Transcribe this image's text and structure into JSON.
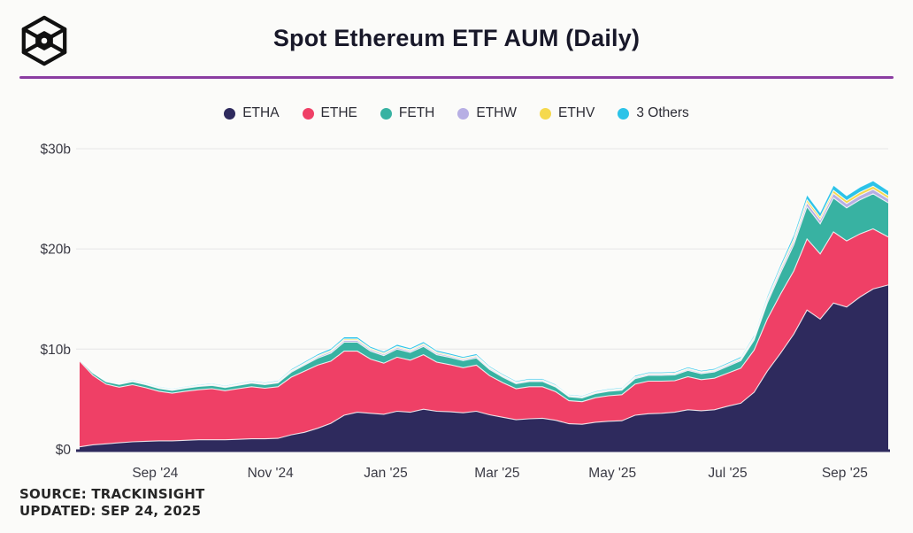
{
  "header": {
    "title": "Spot Ethereum ETF AUM (Daily)",
    "logo_icon": "trackinsight-cube-logo",
    "divider_color": "#8b3da2"
  },
  "footer": {
    "source": "SOURCE: TRACKINSIGHT",
    "updated": "UPDATED: SEP 24, 2025"
  },
  "chart_data": {
    "type": "area",
    "stacked": true,
    "title": "Spot Ethereum ETF AUM (Daily)",
    "unit": "USD billions",
    "ylim": [
      0,
      30
    ],
    "grid": true,
    "legend_position": "top",
    "y_ticks": [
      {
        "label": "$0",
        "value": 0
      },
      {
        "label": "$10b",
        "value": 10
      },
      {
        "label": "$20b",
        "value": 20
      },
      {
        "label": "$30b",
        "value": 30
      }
    ],
    "x_ticks": [
      {
        "label": "Sep '24",
        "date": "2024-09-01"
      },
      {
        "label": "Nov '24",
        "date": "2024-11-01"
      },
      {
        "label": "Jan '25",
        "date": "2025-01-01"
      },
      {
        "label": "Mar '25",
        "date": "2025-03-01"
      },
      {
        "label": "May '25",
        "date": "2025-05-01"
      },
      {
        "label": "Jul '25",
        "date": "2025-07-01"
      },
      {
        "label": "Sep '25",
        "date": "2025-09-01"
      }
    ],
    "x": [
      "2024-07-23",
      "2024-07-30",
      "2024-08-06",
      "2024-08-13",
      "2024-08-20",
      "2024-08-27",
      "2024-09-03",
      "2024-09-10",
      "2024-09-17",
      "2024-09-24",
      "2024-10-01",
      "2024-10-08",
      "2024-10-15",
      "2024-10-22",
      "2024-10-29",
      "2024-11-05",
      "2024-11-12",
      "2024-11-19",
      "2024-11-26",
      "2024-12-03",
      "2024-12-10",
      "2024-12-17",
      "2024-12-24",
      "2024-12-31",
      "2025-01-07",
      "2025-01-14",
      "2025-01-21",
      "2025-01-28",
      "2025-02-04",
      "2025-02-11",
      "2025-02-18",
      "2025-02-25",
      "2025-03-04",
      "2025-03-11",
      "2025-03-18",
      "2025-03-25",
      "2025-04-01",
      "2025-04-08",
      "2025-04-15",
      "2025-04-22",
      "2025-04-29",
      "2025-05-06",
      "2025-05-13",
      "2025-05-20",
      "2025-05-27",
      "2025-06-03",
      "2025-06-10",
      "2025-06-17",
      "2025-06-24",
      "2025-07-01",
      "2025-07-08",
      "2025-07-15",
      "2025-07-22",
      "2025-07-29",
      "2025-08-05",
      "2025-08-12",
      "2025-08-19",
      "2025-08-26",
      "2025-09-02",
      "2025-09-09",
      "2025-09-16",
      "2025-09-24"
    ],
    "series": [
      {
        "name": "ETHA",
        "color": "#2e2a5d",
        "values": [
          0.25,
          0.45,
          0.55,
          0.65,
          0.75,
          0.8,
          0.85,
          0.85,
          0.9,
          0.95,
          0.95,
          0.95,
          1.0,
          1.05,
          1.05,
          1.1,
          1.45,
          1.7,
          2.1,
          2.6,
          3.4,
          3.7,
          3.6,
          3.5,
          3.8,
          3.7,
          4.0,
          3.8,
          3.75,
          3.65,
          3.8,
          3.45,
          3.2,
          2.95,
          3.05,
          3.1,
          2.9,
          2.55,
          2.5,
          2.7,
          2.8,
          2.85,
          3.4,
          3.55,
          3.6,
          3.7,
          3.95,
          3.85,
          3.95,
          4.3,
          4.6,
          5.7,
          7.8,
          9.6,
          11.5,
          13.9,
          13.0,
          14.6,
          14.2,
          15.2,
          16.0,
          16.4
        ]
      },
      {
        "name": "ETHE",
        "color": "#ef4066",
        "values": [
          8.55,
          6.95,
          5.95,
          5.55,
          5.7,
          5.35,
          4.95,
          4.75,
          4.9,
          5.0,
          5.1,
          4.9,
          5.05,
          5.2,
          5.05,
          5.15,
          5.75,
          6.1,
          6.3,
          6.2,
          6.4,
          6.1,
          5.4,
          5.1,
          5.4,
          5.2,
          5.45,
          4.9,
          4.7,
          4.5,
          4.6,
          3.9,
          3.45,
          3.1,
          3.2,
          3.15,
          2.85,
          2.3,
          2.25,
          2.45,
          2.55,
          2.6,
          3.1,
          3.25,
          3.2,
          3.15,
          3.3,
          3.1,
          3.15,
          3.3,
          3.5,
          4.2,
          5.2,
          5.9,
          6.3,
          7.1,
          6.5,
          7.1,
          6.6,
          6.3,
          6.0,
          4.8
        ]
      },
      {
        "name": "FETH",
        "color": "#38b2a2",
        "values": [
          0.1,
          0.22,
          0.25,
          0.28,
          0.3,
          0.3,
          0.28,
          0.28,
          0.3,
          0.32,
          0.33,
          0.32,
          0.34,
          0.36,
          0.35,
          0.38,
          0.5,
          0.6,
          0.7,
          0.8,
          0.9,
          0.9,
          0.8,
          0.75,
          0.8,
          0.78,
          0.82,
          0.75,
          0.72,
          0.7,
          0.72,
          0.62,
          0.55,
          0.5,
          0.52,
          0.52,
          0.47,
          0.4,
          0.38,
          0.42,
          0.44,
          0.45,
          0.55,
          0.58,
          0.58,
          0.58,
          0.62,
          0.6,
          0.62,
          0.68,
          0.75,
          1.0,
          1.6,
          2.1,
          2.6,
          3.2,
          3.0,
          3.4,
          3.3,
          3.4,
          3.5,
          3.4
        ]
      },
      {
        "name": "ETHW",
        "color": "#b7afe4",
        "values": [
          0.02,
          0.04,
          0.05,
          0.05,
          0.06,
          0.06,
          0.06,
          0.06,
          0.06,
          0.07,
          0.07,
          0.07,
          0.07,
          0.08,
          0.08,
          0.08,
          0.1,
          0.12,
          0.14,
          0.16,
          0.18,
          0.18,
          0.16,
          0.15,
          0.16,
          0.15,
          0.16,
          0.15,
          0.14,
          0.14,
          0.14,
          0.12,
          0.11,
          0.1,
          0.1,
          0.1,
          0.09,
          0.08,
          0.08,
          0.08,
          0.09,
          0.09,
          0.11,
          0.11,
          0.11,
          0.11,
          0.12,
          0.11,
          0.12,
          0.13,
          0.14,
          0.18,
          0.25,
          0.3,
          0.35,
          0.42,
          0.4,
          0.44,
          0.42,
          0.44,
          0.45,
          0.42
        ]
      },
      {
        "name": "ETHV",
        "color": "#f5d94d",
        "values": [
          0.02,
          0.03,
          0.04,
          0.04,
          0.05,
          0.05,
          0.05,
          0.05,
          0.05,
          0.05,
          0.05,
          0.05,
          0.06,
          0.06,
          0.06,
          0.06,
          0.08,
          0.09,
          0.1,
          0.12,
          0.13,
          0.13,
          0.12,
          0.11,
          0.12,
          0.11,
          0.12,
          0.11,
          0.1,
          0.1,
          0.1,
          0.09,
          0.08,
          0.07,
          0.07,
          0.07,
          0.07,
          0.06,
          0.06,
          0.06,
          0.06,
          0.07,
          0.08,
          0.08,
          0.08,
          0.08,
          0.09,
          0.08,
          0.09,
          0.09,
          0.1,
          0.13,
          0.18,
          0.22,
          0.26,
          0.3,
          0.28,
          0.31,
          0.3,
          0.31,
          0.32,
          0.3
        ]
      },
      {
        "name": "3 Others",
        "color": "#2cc3e8",
        "values": [
          0.04,
          0.06,
          0.07,
          0.08,
          0.09,
          0.09,
          0.09,
          0.09,
          0.09,
          0.1,
          0.1,
          0.1,
          0.1,
          0.11,
          0.11,
          0.11,
          0.14,
          0.16,
          0.18,
          0.2,
          0.22,
          0.22,
          0.2,
          0.19,
          0.2,
          0.19,
          0.2,
          0.19,
          0.18,
          0.17,
          0.18,
          0.15,
          0.14,
          0.13,
          0.13,
          0.13,
          0.12,
          0.1,
          0.1,
          0.11,
          0.11,
          0.12,
          0.14,
          0.14,
          0.14,
          0.14,
          0.15,
          0.14,
          0.15,
          0.16,
          0.17,
          0.22,
          0.3,
          0.36,
          0.42,
          0.5,
          0.47,
          0.52,
          0.5,
          0.52,
          0.54,
          0.5
        ]
      }
    ],
    "style": {
      "grid_color": "#ebebeb",
      "axis_line_color": "#2e2a5d",
      "tick_text_color": "#3a3a44",
      "band_separator_color": "#ffffff"
    }
  }
}
